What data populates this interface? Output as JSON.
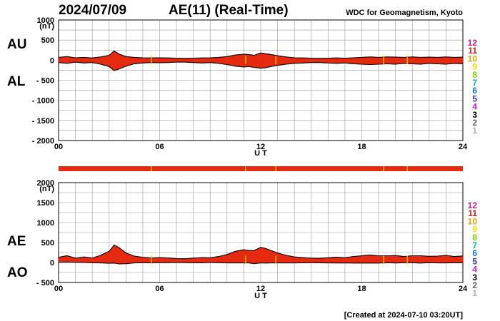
{
  "header": {
    "date": "2024/07/09",
    "title": "AE(11) (Real-Time)",
    "source": "WDC for Geomagnetism, Kyoto"
  },
  "footer": "[Created at 2024-07-10 03:20UT]",
  "station_legend": {
    "labels": [
      "12",
      "11",
      "10",
      "9",
      "8",
      "7",
      "6",
      "5",
      "4",
      "3",
      "2",
      "1"
    ],
    "colors": [
      "#e0197a",
      "#d02020",
      "#f0a000",
      "#f0e000",
      "#80d000",
      "#00c0a0",
      "#1070e0",
      "#3030c0",
      "#c020e0",
      "#000000",
      "#606060",
      "#b0b0b0"
    ]
  },
  "bar_color": "#e62a10",
  "marker_color": "#f5c400",
  "chart_data": [
    {
      "type": "area",
      "name_labels": {
        "upper": "AU",
        "lower": "AL"
      },
      "unit": "(nT)",
      "ylim": [
        -2000,
        1000
      ],
      "yticks": [
        1000,
        500,
        0,
        -500,
        -1000,
        -1500,
        -2000
      ],
      "ytick_labels": [
        "1000",
        "500",
        "0",
        "- 500",
        "- 1000",
        "- 1500",
        "- 2000"
      ],
      "xlim": [
        0,
        24
      ],
      "xticks": [
        0,
        6,
        12,
        18,
        24
      ],
      "xtick_labels": [
        "00",
        "06",
        "12",
        "18",
        "24"
      ],
      "xlabel": "U T",
      "grid": true,
      "x": [
        0,
        0.5,
        1,
        1.5,
        2,
        2.5,
        3,
        3.3,
        3.6,
        4,
        4.5,
        5,
        5.5,
        6,
        6.5,
        7,
        7.5,
        8,
        8.5,
        9,
        9.5,
        10,
        10.5,
        11,
        11.3,
        11.6,
        12,
        12.3,
        12.6,
        13,
        13.5,
        14,
        14.5,
        15,
        15.5,
        16,
        16.5,
        17,
        17.5,
        18,
        18.5,
        19,
        19.5,
        20,
        20.5,
        21,
        21.5,
        22,
        22.5,
        23,
        23.5,
        24
      ],
      "upper": [
        70,
        90,
        60,
        70,
        55,
        80,
        120,
        230,
        150,
        90,
        70,
        60,
        55,
        60,
        55,
        50,
        45,
        50,
        55,
        60,
        70,
        90,
        130,
        150,
        140,
        120,
        180,
        160,
        140,
        110,
        80,
        60,
        55,
        50,
        45,
        50,
        55,
        50,
        60,
        70,
        80,
        70,
        80,
        75,
        70,
        80,
        70,
        75,
        70,
        80,
        70,
        75
      ],
      "lower": [
        -60,
        -80,
        -50,
        -70,
        -60,
        -100,
        -160,
        -260,
        -220,
        -150,
        -90,
        -70,
        -60,
        -65,
        -60,
        -50,
        -50,
        -60,
        -70,
        -60,
        -80,
        -110,
        -150,
        -170,
        -160,
        -180,
        -200,
        -190,
        -160,
        -130,
        -100,
        -80,
        -70,
        -60,
        -60,
        -70,
        -80,
        -70,
        -90,
        -100,
        -110,
        -100,
        -90,
        -100,
        -80,
        -90,
        -100,
        -80,
        -90,
        -100,
        -80,
        -90
      ],
      "markers": [
        5.5,
        11.1,
        12.9,
        19.3,
        20.7
      ]
    },
    {
      "type": "area",
      "name_labels": {
        "upper": "AE",
        "lower": "AO"
      },
      "unit": "(nT)",
      "ylim": [
        -500,
        2000
      ],
      "yticks": [
        2000,
        1500,
        1000,
        500,
        0,
        -500
      ],
      "ytick_labels": [
        "2000",
        "1500",
        "1000",
        "500",
        "0",
        "- 500"
      ],
      "xlim": [
        0,
        24
      ],
      "xticks": [
        0,
        6,
        12,
        18,
        24
      ],
      "xtick_labels": [
        "00",
        "06",
        "12",
        "18",
        "24"
      ],
      "xlabel": "U T",
      "grid": true,
      "x": [
        0,
        0.5,
        1,
        1.5,
        2,
        2.5,
        3,
        3.3,
        3.6,
        4,
        4.5,
        5,
        5.5,
        6,
        6.5,
        7,
        7.5,
        8,
        8.5,
        9,
        9.5,
        10,
        10.5,
        11,
        11.3,
        11.6,
        12,
        12.3,
        12.6,
        13,
        13.5,
        14,
        14.5,
        15,
        15.5,
        16,
        16.5,
        17,
        17.5,
        18,
        18.5,
        19,
        19.5,
        20,
        20.5,
        21,
        21.5,
        22,
        22.5,
        23,
        23.5,
        24
      ],
      "upper": [
        130,
        170,
        110,
        140,
        115,
        180,
        280,
        440,
        370,
        240,
        160,
        130,
        115,
        125,
        115,
        100,
        95,
        110,
        125,
        120,
        150,
        200,
        280,
        320,
        300,
        300,
        380,
        350,
        300,
        240,
        180,
        140,
        125,
        110,
        105,
        120,
        135,
        120,
        150,
        170,
        190,
        170,
        170,
        175,
        150,
        170,
        170,
        155,
        160,
        180,
        150,
        165
      ],
      "lower": [
        5,
        10,
        5,
        0,
        -5,
        -10,
        -20,
        -15,
        -35,
        -30,
        -10,
        -5,
        -5,
        -3,
        -3,
        0,
        -3,
        -5,
        -8,
        0,
        -5,
        -10,
        -10,
        -10,
        -10,
        -30,
        -10,
        -15,
        -10,
        -10,
        -10,
        -10,
        -8,
        -5,
        -8,
        -10,
        -12,
        -10,
        -15,
        -15,
        -15,
        -15,
        -5,
        -12,
        -5,
        -5,
        -15,
        -3,
        -10,
        -10,
        -5,
        -8
      ],
      "markers": [
        5.5,
        11.1,
        12.9,
        19.3,
        20.7
      ]
    }
  ]
}
